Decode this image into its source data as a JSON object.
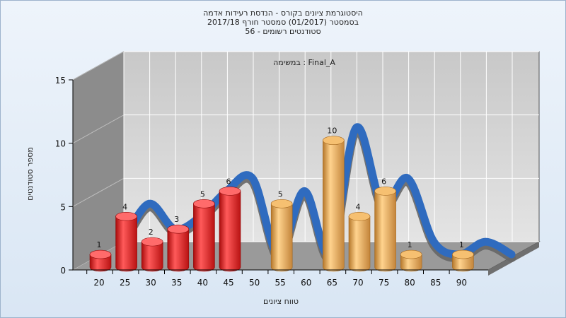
{
  "chart_data": {
    "type": "bar",
    "title": "היסטוגרמת ציונים בקורס - הנדסת רעידות אדמה",
    "subtitle_lines": [
      "בסמסטר  (01/2017)  סמסטר חורף 2017/18",
      "סטודנטים רשומים - 56"
    ],
    "annotation": "במשימה : Final_A",
    "xlabel": "טווח ציונים",
    "ylabel": "מספר סטודנטים",
    "ylim": [
      0,
      15
    ],
    "y_ticks": [
      0,
      5,
      10,
      15
    ],
    "categories": [
      "20",
      "25",
      "30",
      "35",
      "40",
      "45",
      "50",
      "55",
      "60",
      "65",
      "70",
      "75",
      "80",
      "85",
      "90"
    ],
    "values": [
      1,
      4,
      2,
      3,
      5,
      6,
      0,
      5,
      0,
      10,
      4,
      6,
      1,
      0,
      1
    ],
    "bar_colors": [
      "#e02020",
      "#e02020",
      "#e02020",
      "#e02020",
      "#e02020",
      "#e02020",
      "#e02020",
      "#e3a54a",
      "#e3a54a",
      "#e3a54a",
      "#e3a54a",
      "#e3a54a",
      "#e3a54a",
      "#e3a54a",
      "#e3a54a"
    ],
    "grid": true,
    "legend": "none",
    "colors": {
      "fail": "#e02020",
      "pass": "#e3a54a",
      "curve_front": "#2f6bbf",
      "curve_back": "#666666"
    }
  }
}
